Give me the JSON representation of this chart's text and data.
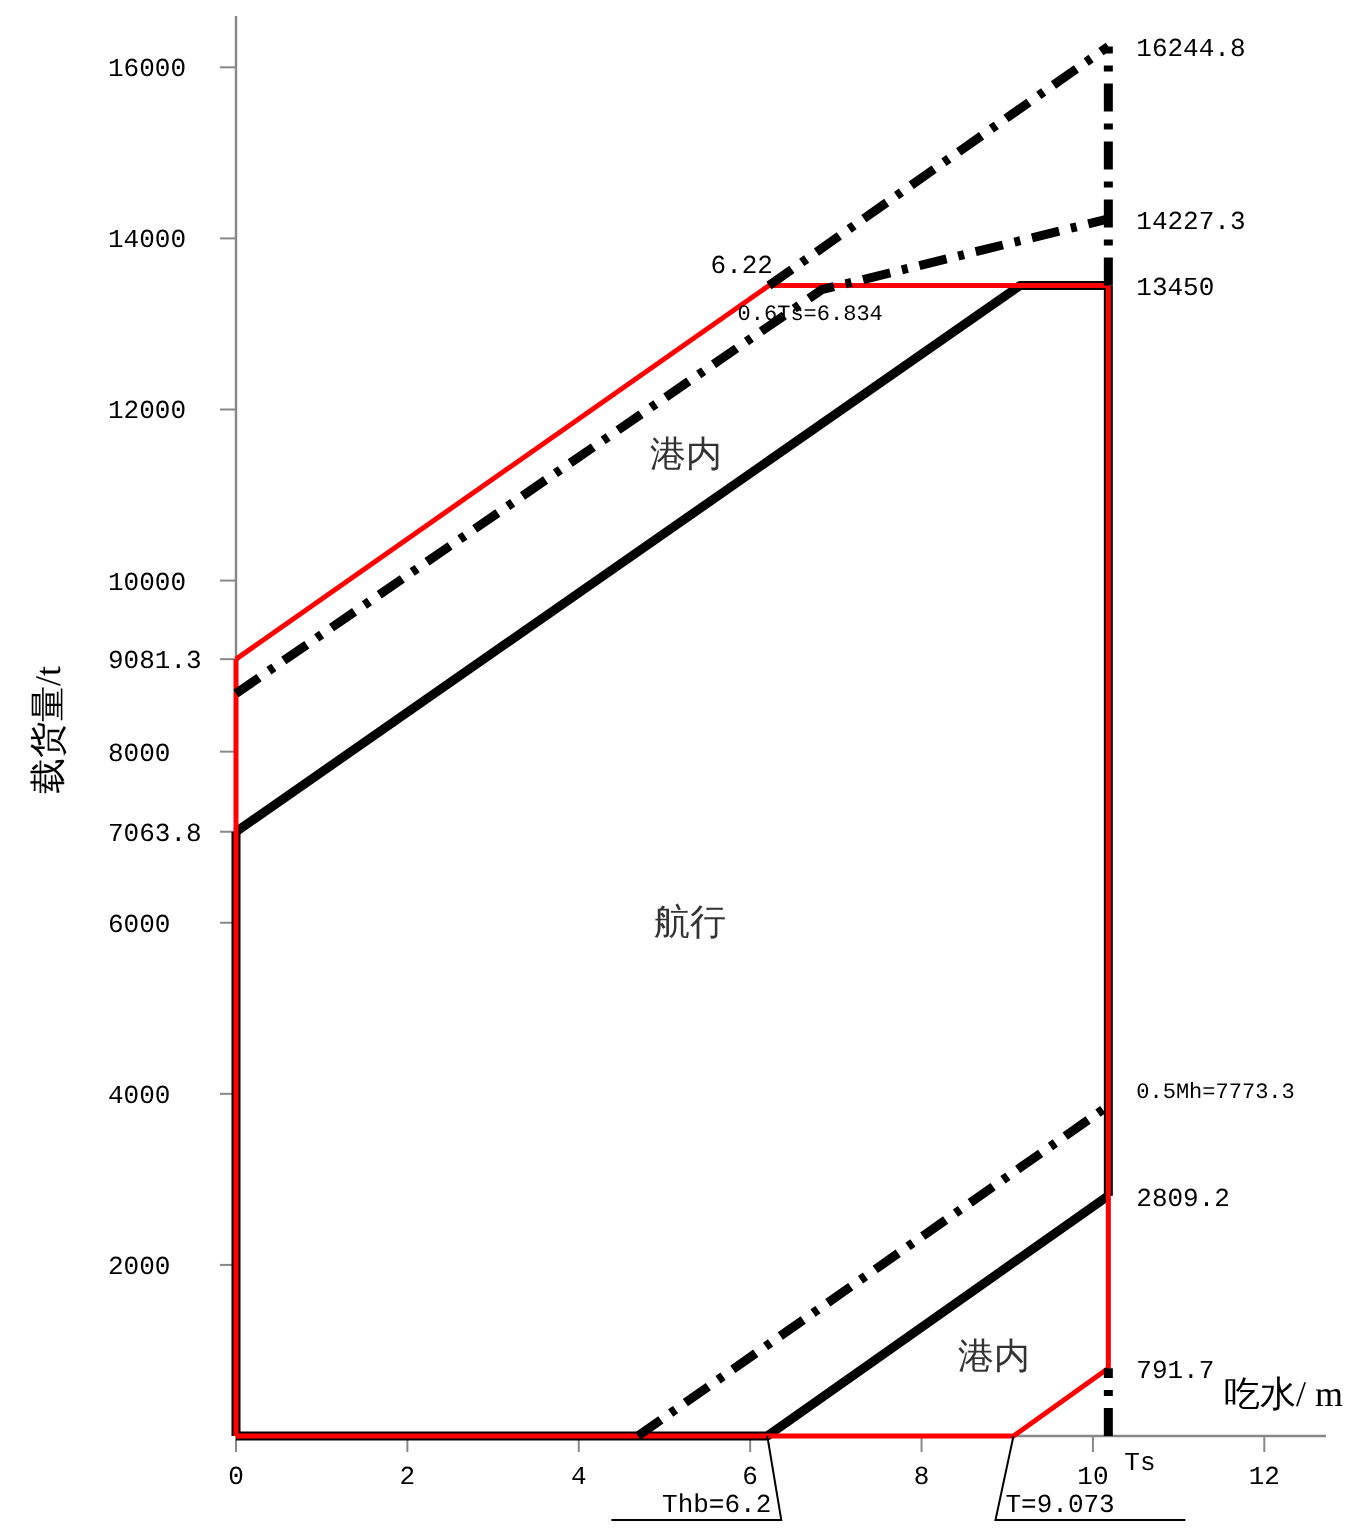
{
  "chart_data": {
    "type": "line",
    "xlabel": "吃水/ m",
    "ylabel": "载货量/t",
    "xlim": [
      0,
      12.72
    ],
    "ylim": [
      0,
      16600
    ],
    "xticks": [
      0,
      2,
      4,
      6,
      8,
      10,
      12
    ],
    "yticks": [
      2000,
      4000,
      6000,
      7063.8,
      8000,
      9081.3,
      10000,
      12000,
      14000,
      16000
    ],
    "grid": false,
    "marker": "none",
    "series": [
      {
        "color": "#000000",
        "line_style": "solid",
        "x": [
          0,
          9.15,
          10.18
        ],
        "values": [
          7063.8,
          13450,
          13450
        ]
      },
      {
        "color": "#000000",
        "line_style": "solid",
        "x": [
          0,
          6.2,
          10.18
        ],
        "values": [
          0,
          0,
          2809.2
        ]
      },
      {
        "color": "#000000",
        "line_style": "solid",
        "x": [
          0,
          0
        ],
        "values": [
          0,
          7063.8
        ]
      },
      {
        "color": "#000000",
        "line_style": "solid",
        "x": [
          10.18,
          10.18
        ],
        "values": [
          2809.2,
          13450
        ]
      },
      {
        "color": "#ff0000",
        "line_style": "solid",
        "x": [
          0,
          6.22,
          10.18
        ],
        "values": [
          9081.3,
          13450,
          13450
        ]
      },
      {
        "color": "#ff0000",
        "line_style": "solid",
        "x": [
          0,
          9.073,
          10.18
        ],
        "values": [
          0,
          0,
          791.7
        ]
      },
      {
        "color": "#ff0000",
        "line_style": "solid",
        "x": [
          0,
          0
        ],
        "values": [
          0,
          9081.3
        ]
      },
      {
        "color": "#ff0000",
        "line_style": "solid",
        "x": [
          10.18,
          10.18
        ],
        "values": [
          791.7,
          13450
        ]
      },
      {
        "color": "#000000",
        "line_style": "dashed",
        "x": [
          6.22,
          10.18
        ],
        "values": [
          13450,
          16244.8
        ]
      },
      {
        "color": "#000000",
        "line_style": "dashed",
        "x": [
          0,
          6.834,
          10.18
        ],
        "values": [
          8680,
          13400,
          14227.3
        ]
      },
      {
        "color": "#000000",
        "line_style": "dashed",
        "x": [
          4.69,
          10.18
        ],
        "values": [
          0,
          3860
        ]
      },
      {
        "color": "#000000",
        "line_style": "dashed",
        "x": [
          10.18,
          10.18
        ],
        "values": [
          13450,
          16244.8
        ]
      },
      {
        "color": "#000000",
        "line_style": "dashed",
        "x": [
          10.18,
          10.18
        ],
        "values": [
          0,
          791.7
        ]
      }
    ],
    "annotations": [
      {
        "text": "16244.8",
        "x": 10.18,
        "y": 16244.8
      },
      {
        "text": "14227.3",
        "x": 10.18,
        "y": 14227.3
      },
      {
        "text": "13450",
        "x": 10.18,
        "y": 13450
      },
      {
        "text": "2809.2",
        "x": 10.18,
        "y": 2809.2
      },
      {
        "text": "791.7",
        "x": 10.18,
        "y": 791.7
      },
      {
        "text": "0.5Mh=7773.3",
        "x": 10.18,
        "y": 3860
      },
      {
        "text": "6.22",
        "x": 6.22,
        "y": 13450
      },
      {
        "text": "0.6Ts=6.834",
        "x": 6.834,
        "y": 13400
      },
      "港内",
      "航行",
      "港内",
      {
        "text": "Thb=6.2",
        "x": 6.2,
        "y": 0
      },
      {
        "text": "T=9.073",
        "x": 9.073,
        "y": 0
      },
      {
        "text": "Ts",
        "x": 10.18,
        "y": 0
      }
    ]
  }
}
